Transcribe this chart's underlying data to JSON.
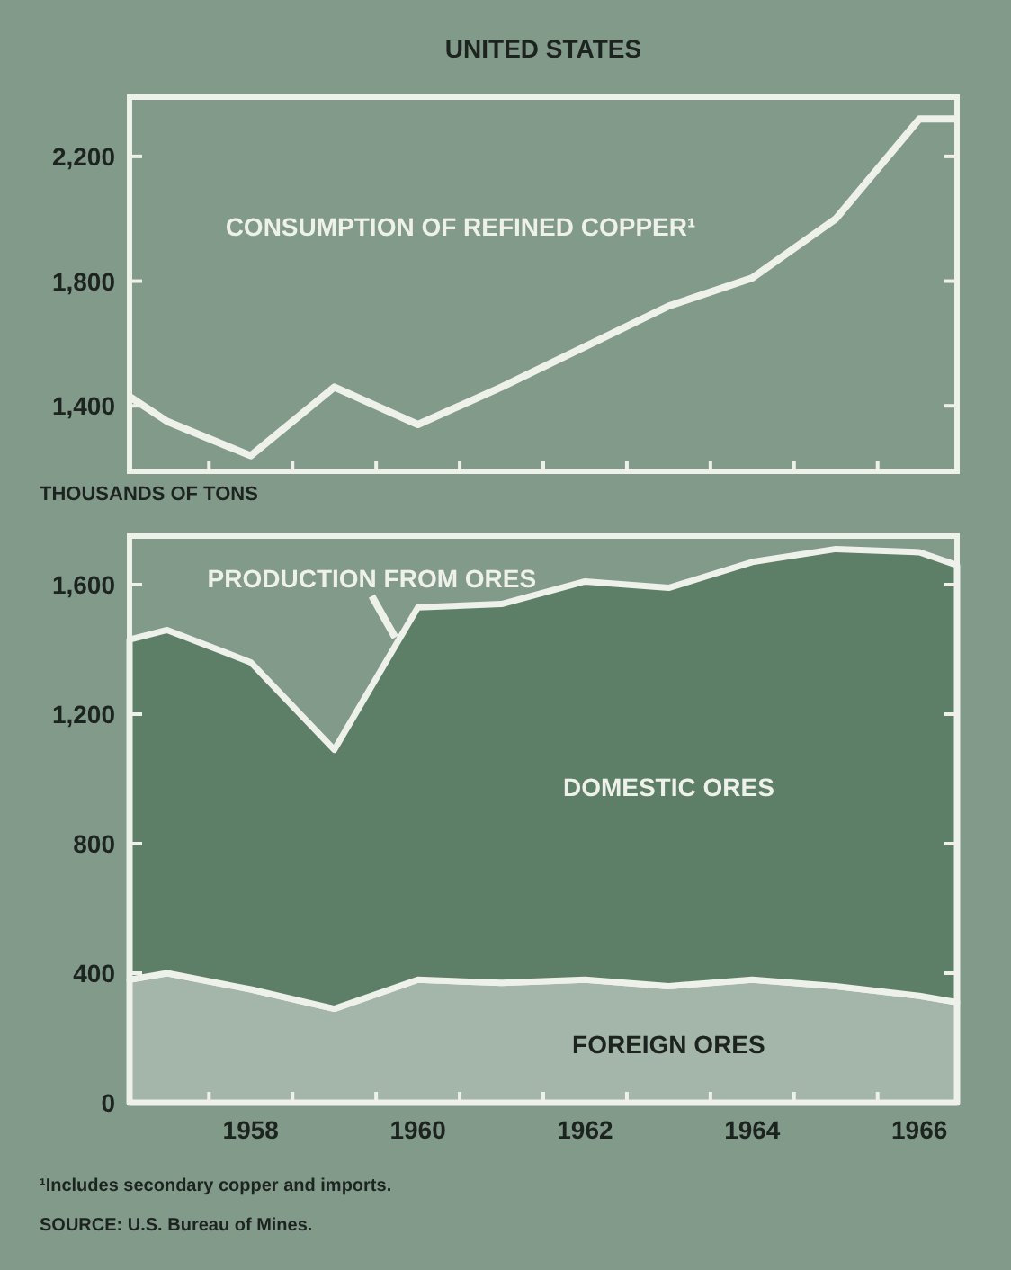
{
  "chart_data": [
    {
      "type": "line",
      "title": "UNITED STATES",
      "x": [
        1956.55,
        1957,
        1958,
        1959,
        1960,
        1961,
        1962,
        1963,
        1964,
        1965,
        1966,
        1966.45
      ],
      "series": [
        {
          "name": "CONSUMPTION OF REFINED COPPER¹",
          "color": "#eef0ea",
          "values": [
            1430,
            1350,
            1240,
            1460,
            1340,
            1460,
            1590,
            1720,
            1810,
            2000,
            2320,
            2320
          ]
        }
      ],
      "xlim": [
        1956.55,
        1966.45
      ],
      "xticks": [
        {
          "value": 1957.5,
          "label": null
        },
        {
          "value": 1958.5,
          "label": null
        },
        {
          "value": 1959.5,
          "label": null
        },
        {
          "value": 1960.5,
          "label": null
        },
        {
          "value": 1961.5,
          "label": null
        },
        {
          "value": 1962.5,
          "label": null
        },
        {
          "value": 1963.5,
          "label": null
        },
        {
          "value": 1964.5,
          "label": null
        },
        {
          "value": 1965.5,
          "label": null
        }
      ],
      "ylim": [
        1190,
        2390
      ],
      "yticks": [
        {
          "value": 1400,
          "label": "1,400"
        },
        {
          "value": 1800,
          "label": "1,800"
        },
        {
          "value": 2200,
          "label": "2,200"
        }
      ],
      "tick_labels": "y"
    },
    {
      "type": "area",
      "stacked": true,
      "ylabel": "THOUSANDS OF TONS",
      "x": [
        1956.55,
        1957,
        1958,
        1959,
        1960,
        1961,
        1962,
        1963,
        1964,
        1965,
        1966,
        1966.45
      ],
      "series": [
        {
          "name": "FOREIGN ORES",
          "color": "#a4b6a9",
          "values": [
            380,
            400,
            350,
            290,
            380,
            370,
            380,
            360,
            380,
            360,
            330,
            310
          ]
        },
        {
          "name": "DOMESTIC ORES",
          "color": "#5e7f67",
          "values": [
            1050,
            1060,
            1010,
            800,
            1150,
            1170,
            1230,
            1230,
            1290,
            1350,
            1370,
            1350
          ]
        }
      ],
      "xlim": [
        1956.55,
        1966.45
      ],
      "xticks": [
        {
          "value": 1957.5,
          "label": null
        },
        1958,
        {
          "value": 1958.5,
          "label": null
        },
        {
          "value": 1959.5,
          "label": null
        },
        1960,
        {
          "value": 1960.5,
          "label": null
        },
        {
          "value": 1961.5,
          "label": null
        },
        1962,
        {
          "value": 1962.5,
          "label": null
        },
        {
          "value": 1963.5,
          "label": null
        },
        1964,
        {
          "value": 1964.5,
          "label": null
        },
        {
          "value": 1965.5,
          "label": null
        },
        1966
      ],
      "ylim": [
        0,
        1750
      ],
      "yticks": [
        0,
        400,
        800,
        {
          "value": 1200,
          "label": "1,200"
        },
        {
          "value": 1600,
          "label": "1,600"
        }
      ],
      "annotations": [
        {
          "text": "PRODUCTION FROM ORES",
          "x": 1959.75,
          "y": 1420
        },
        "¹Includes secondary copper and imports.",
        "SOURCE: U.S. Bureau of Mines."
      ]
    }
  ]
}
